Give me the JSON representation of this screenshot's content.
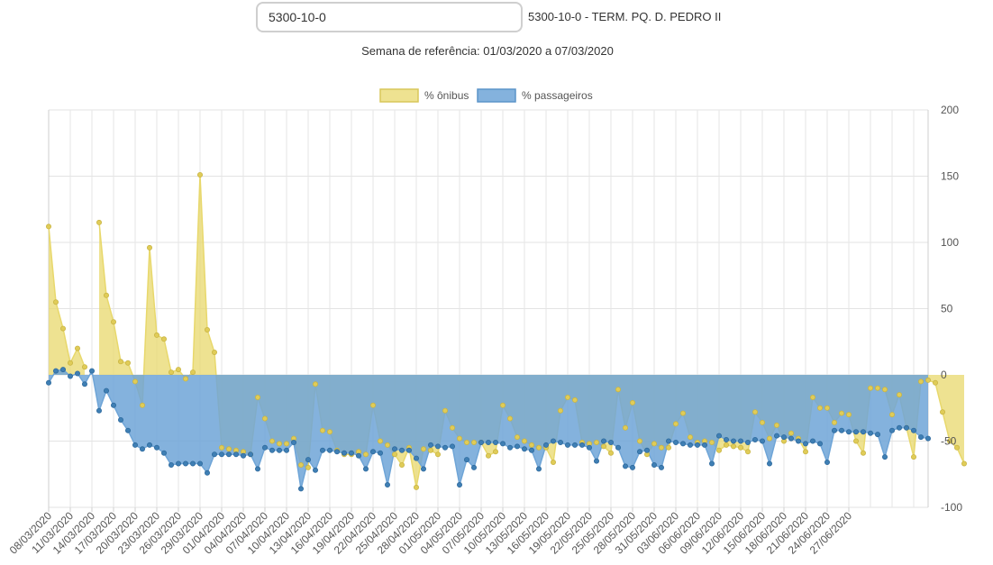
{
  "header": {
    "code_input_value": "5300-10-0",
    "route_label": "5300-10-0 - TERM. PQ. D. PEDRO II",
    "reference_week": "Semana de referência: 01/03/2020 a 07/03/2020"
  },
  "chart_data": {
    "type": "area",
    "legend_position": "top-center",
    "grid": true,
    "y_axis_position": "right",
    "ylim": [
      -100,
      200
    ],
    "yticks": [
      200,
      150,
      100,
      50,
      0,
      -50,
      -100
    ],
    "x_start_date": "08/03/2020",
    "x_tick_labels": [
      "08/03/2020",
      "11/03/2020",
      "14/03/2020",
      "17/03/2020",
      "20/03/2020",
      "23/03/2020",
      "26/03/2020",
      "29/03/2020",
      "01/04/2020",
      "04/04/2020",
      "07/04/2020",
      "10/04/2020",
      "13/04/2020",
      "16/04/2020",
      "19/04/2020",
      "22/04/2020",
      "25/04/2020",
      "28/04/2020",
      "01/05/2020",
      "04/05/2020",
      "07/05/2020",
      "10/05/2020",
      "13/05/2020",
      "16/05/2020",
      "19/05/2020",
      "22/05/2020",
      "25/05/2020",
      "28/05/2020",
      "31/05/2020",
      "03/06/2020",
      "06/06/2020",
      "09/06/2020",
      "12/06/2020",
      "15/06/2020",
      "18/06/2020",
      "21/06/2020",
      "24/06/2020",
      "27/06/2020"
    ],
    "series": [
      {
        "name": "% ônibus",
        "color": "#e8d86c",
        "fill": "rgba(232,216,108,0.75)",
        "values": [
          112,
          55,
          35,
          9,
          20,
          6,
          null,
          115,
          60,
          40,
          10,
          9,
          -5,
          -23,
          96,
          30,
          27,
          2,
          4,
          -3,
          2,
          151,
          34,
          17,
          -55,
          -56,
          -57,
          -58,
          -60,
          -17,
          -33,
          -50,
          -52,
          -52,
          -48,
          -68,
          -70,
          -7,
          -42,
          -43,
          -57,
          -60,
          -60,
          -58,
          -60,
          -23,
          -50,
          -53,
          -60,
          -68,
          -55,
          -85,
          -56,
          -57,
          -60,
          -27,
          -40,
          -48,
          -51,
          -51,
          -51,
          -61,
          -58,
          -23,
          -33,
          -47,
          -50,
          -53,
          -55,
          -55,
          -66,
          -27,
          -17,
          -19,
          -51,
          -52,
          -51,
          -54,
          -59,
          -11,
          -40,
          -21,
          -50,
          -60,
          -52,
          -55,
          -55,
          -37,
          -29,
          -47,
          -51,
          -50,
          -51,
          -57,
          -53,
          -54,
          -55,
          -58,
          -28,
          -36,
          -48,
          -38,
          -50,
          -44,
          -48,
          -58,
          -17,
          -25,
          -25,
          -36,
          -29,
          -30,
          -50,
          -59,
          -10,
          -10,
          -11,
          -30,
          -15,
          -40,
          -62,
          -5,
          -4,
          -6,
          -28,
          -50,
          -55,
          -67
        ]
      },
      {
        "name": "% passageiros",
        "color": "#6fa5d7",
        "fill": "rgba(111,165,215,0.85)",
        "values": [
          -6,
          3,
          4,
          -1,
          1,
          -7,
          3,
          -27,
          -12,
          -23,
          -34,
          -42,
          -53,
          -56,
          -53,
          -55,
          -59,
          -68,
          -67,
          -67,
          -67,
          -67,
          -74,
          -60,
          -60,
          -60,
          -60,
          -61,
          -60,
          -71,
          -55,
          -57,
          -57,
          -57,
          -51,
          -86,
          -64,
          -72,
          -57,
          -57,
          -58,
          -59,
          -59,
          -61,
          -71,
          -58,
          -59,
          -83,
          -56,
          -57,
          -57,
          -63,
          -71,
          -53,
          -54,
          -55,
          -54,
          -83,
          -64,
          -70,
          -51,
          -51,
          -51,
          -52,
          -55,
          -54,
          -56,
          -57,
          -71,
          -53,
          -50,
          -51,
          -53,
          -53,
          -53,
          -55,
          -65,
          -50,
          -51,
          -55,
          -69,
          -70,
          -58,
          -57,
          -68,
          -70,
          -50,
          -51,
          -52,
          -53,
          -53,
          -53,
          -67,
          -46,
          -49,
          -50,
          -50,
          -51,
          -49,
          -50,
          -67,
          -46,
          -47,
          -48,
          -50,
          -52,
          -50,
          -52,
          -66,
          -42,
          -42,
          -43,
          -43,
          -43,
          -44,
          -45,
          -62,
          -42,
          -40,
          -40,
          -42,
          -47,
          -48,
          null,
          null,
          null
        ]
      }
    ],
    "xlabel": "",
    "ylabel": "",
    "title": ""
  }
}
